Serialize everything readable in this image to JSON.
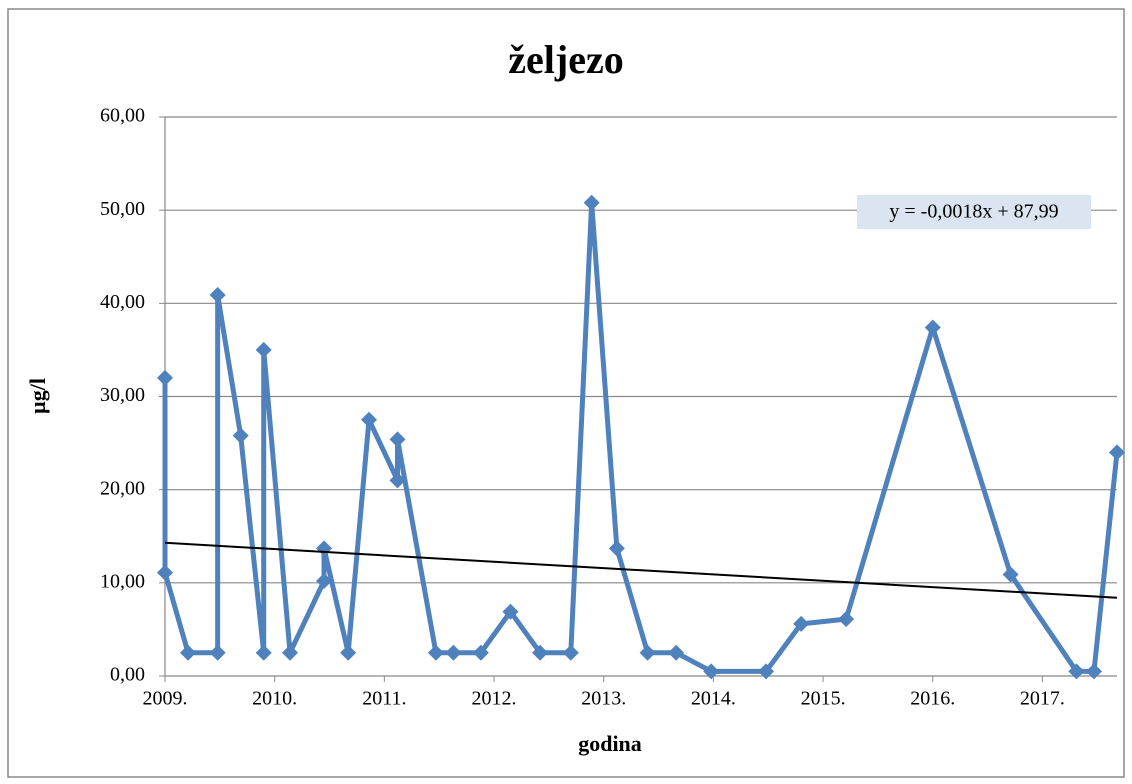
{
  "chart_data": {
    "type": "line",
    "title": "željezo",
    "xlabel": "godina",
    "ylabel": "µg/l",
    "series": [
      {
        "name": "željezo",
        "color": "#4f81bd",
        "x": [
          2009.0,
          2009.0,
          2009.21,
          2009.48,
          2009.48,
          2009.69,
          2009.9,
          2009.9,
          2010.14,
          2010.45,
          2010.45,
          2010.67,
          2010.86,
          2011.12,
          2011.12,
          2011.47,
          2011.63,
          2011.88,
          2012.15,
          2012.42,
          2012.7,
          2012.89,
          2013.12,
          2013.4,
          2013.66,
          2013.98,
          2014.48,
          2014.8,
          2015.21,
          2016.0,
          2016.71,
          2017.31,
          2017.47,
          2017.68
        ],
        "values": [
          32.0,
          11.1,
          2.5,
          2.5,
          40.9,
          25.8,
          2.5,
          35.0,
          2.5,
          10.2,
          13.7,
          2.5,
          27.5,
          21.0,
          25.4,
          2.5,
          2.5,
          2.5,
          6.9,
          2.5,
          2.5,
          50.8,
          13.7,
          2.5,
          2.5,
          0.5,
          0.5,
          5.6,
          6.1,
          37.4,
          10.9,
          0.5,
          0.5,
          24.0
        ]
      }
    ],
    "trendline": {
      "equation": "y = -0,0018x + 87,99",
      "color": "#000000",
      "x": [
        2009,
        2017.68
      ],
      "values": [
        14.3,
        8.4
      ]
    },
    "xlim": [
      2009,
      2017.68
    ],
    "xticks": [
      {
        "value": 2009,
        "label": "2009."
      },
      {
        "value": 2010,
        "label": "2010."
      },
      {
        "value": 2011,
        "label": "2011."
      },
      {
        "value": 2012,
        "label": "2012."
      },
      {
        "value": 2013,
        "label": "2013."
      },
      {
        "value": 2014,
        "label": "2014."
      },
      {
        "value": 2015,
        "label": "2015."
      },
      {
        "value": 2016,
        "label": "2016."
      },
      {
        "value": 2017,
        "label": "2017."
      }
    ],
    "ylim": [
      0,
      60
    ],
    "yticks": [
      {
        "value": 0,
        "label": "0,00"
      },
      {
        "value": 10,
        "label": "10,00"
      },
      {
        "value": 20,
        "label": "20,00"
      },
      {
        "value": 30,
        "label": "30,00"
      },
      {
        "value": 40,
        "label": "40,00"
      },
      {
        "value": 50,
        "label": "50,00"
      },
      {
        "value": 60,
        "label": "60,00"
      }
    ],
    "grid": true
  }
}
